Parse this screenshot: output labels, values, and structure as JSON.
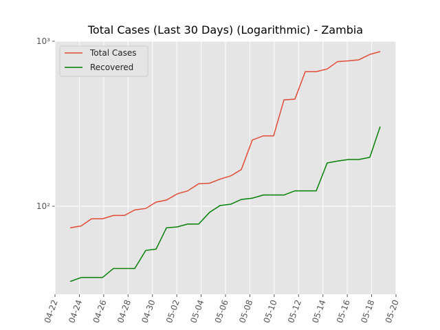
{
  "chart_data": {
    "type": "line",
    "title": "Total Cases (Last 30 Days) (Logarithmic) - Zambia",
    "x": [
      1.24,
      2.15,
      3.0,
      3.9,
      4.8,
      5.7,
      6.55,
      7.45,
      8.3,
      9.15,
      10.05,
      10.9,
      11.8,
      12.7,
      13.55,
      14.45,
      15.3,
      16.2,
      17.1,
      17.95,
      18.8,
      19.7,
      20.55,
      21.45,
      22.35,
      23.2,
      24.1,
      24.95,
      25.85,
      26.7
    ],
    "series": [
      {
        "name": "Total Cases",
        "color": "#e24a33",
        "values": [
          74,
          76,
          84,
          84,
          88,
          88,
          95,
          97,
          106,
          109,
          119,
          124,
          137,
          138,
          146,
          153,
          167,
          252,
          267,
          267,
          441,
          446,
          654,
          654,
          679,
          753,
          761,
          772,
          832,
          866
        ]
      },
      {
        "name": "Recovered",
        "color": "#008000",
        "values": [
          35,
          37,
          37,
          37,
          42,
          42,
          42,
          54,
          55,
          74,
          75,
          78,
          78,
          92,
          101,
          103,
          110,
          112,
          117,
          117,
          117,
          124,
          124,
          124,
          183,
          188,
          192,
          192,
          198,
          304
        ]
      }
    ],
    "xlim": [
      0,
      28
    ],
    "xticks": [
      {
        "value": 0,
        "label": "04-22"
      },
      {
        "value": 2,
        "label": "04-24"
      },
      {
        "value": 4,
        "label": "04-26"
      },
      {
        "value": 6,
        "label": "04-28"
      },
      {
        "value": 8,
        "label": "04-30"
      },
      {
        "value": 10,
        "label": "05-02"
      },
      {
        "value": 12,
        "label": "05-04"
      },
      {
        "value": 14,
        "label": "05-06"
      },
      {
        "value": 16,
        "label": "05-08"
      },
      {
        "value": 18,
        "label": "05-10"
      },
      {
        "value": 20,
        "label": "05-12"
      },
      {
        "value": 22,
        "label": "05-14"
      },
      {
        "value": 24,
        "label": "05-16"
      },
      {
        "value": 26,
        "label": "05-18"
      },
      {
        "value": 28,
        "label": "05-20"
      }
    ],
    "ylim": [
      29.3,
      1000
    ],
    "yticks": [
      {
        "value": 100,
        "label": "10²"
      },
      {
        "value": 1000,
        "label": "10³"
      }
    ],
    "log_y": true,
    "grid": true,
    "legend": "upper left"
  }
}
